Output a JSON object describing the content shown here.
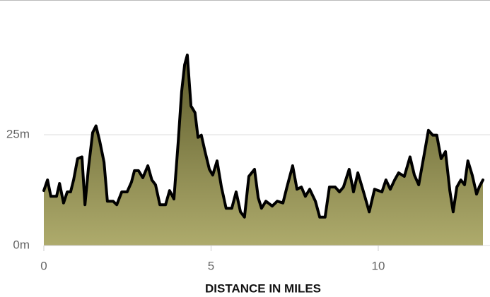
{
  "chart_data": {
    "type": "area",
    "x_label": "DISTANCE IN MILES",
    "x": [
      0,
      0.11,
      0.21,
      0.38,
      0.47,
      0.59,
      0.7,
      0.8,
      0.89,
      1.01,
      1.14,
      1.23,
      1.33,
      1.46,
      1.56,
      1.67,
      1.8,
      1.9,
      2.07,
      2.18,
      2.33,
      2.49,
      2.62,
      2.71,
      2.83,
      2.96,
      3.11,
      3.23,
      3.34,
      3.47,
      3.64,
      3.76,
      3.89,
      4.02,
      4.12,
      4.21,
      4.29,
      4.4,
      4.52,
      4.61,
      4.71,
      4.82,
      4.95,
      5.05,
      5.18,
      5.31,
      5.45,
      5.62,
      5.75,
      5.88,
      6.0,
      6.13,
      6.3,
      6.41,
      6.51,
      6.64,
      6.83,
      6.98,
      7.15,
      7.27,
      7.44,
      7.57,
      7.7,
      7.82,
      7.95,
      8.12,
      8.25,
      8.41,
      8.54,
      8.71,
      8.84,
      8.96,
      9.13,
      9.26,
      9.39,
      9.56,
      9.73,
      9.89,
      10.11,
      10.23,
      10.36,
      10.49,
      10.61,
      10.78,
      10.95,
      11.08,
      11.21,
      11.37,
      11.5,
      11.63,
      11.75,
      11.88,
      12.01,
      12.14,
      12.24,
      12.35,
      12.47,
      12.58,
      12.68,
      12.81,
      12.94,
      13.02,
      13.13
    ],
    "values": [
      12.4,
      14.8,
      11.1,
      11.1,
      14,
      9.6,
      12.1,
      12.1,
      14.8,
      19.6,
      20,
      9.2,
      17.2,
      25.5,
      27,
      23.6,
      18.8,
      10,
      10,
      9.2,
      12.1,
      12.1,
      14.3,
      16.9,
      16.9,
      15.3,
      18,
      14.8,
      13.7,
      9.2,
      9.2,
      12.4,
      10.5,
      23.6,
      34.7,
      40.8,
      43,
      31.5,
      30,
      24.4,
      24.9,
      21.2,
      17.2,
      15.9,
      19.1,
      13.2,
      8.4,
      8.4,
      12.1,
      7.6,
      6.4,
      15.6,
      17.2,
      10.8,
      8.4,
      10,
      8.9,
      10,
      9.6,
      13.2,
      18,
      12.7,
      13.2,
      11.1,
      12.7,
      10,
      6.4,
      6.4,
      13.2,
      13.2,
      12.1,
      13.2,
      17.2,
      12.1,
      16.4,
      12.1,
      7.6,
      12.7,
      12.1,
      14.8,
      12.7,
      14.8,
      16.4,
      15.6,
      20,
      15.9,
      13.7,
      20.4,
      26,
      24.9,
      24.9,
      19.6,
      21.2,
      12.4,
      7.6,
      13.2,
      14.8,
      13.7,
      19.1,
      15.9,
      11.6,
      13.2,
      14.8
    ],
    "color": "#000000",
    "xlim": [
      0,
      13.13
    ],
    "xticks": [
      0,
      5,
      10
    ],
    "ylim": [
      0,
      55
    ],
    "yticks": [
      {
        "value": 0,
        "label": "0m"
      },
      {
        "value": 25,
        "label": "25m"
      }
    ],
    "grid": true
  }
}
